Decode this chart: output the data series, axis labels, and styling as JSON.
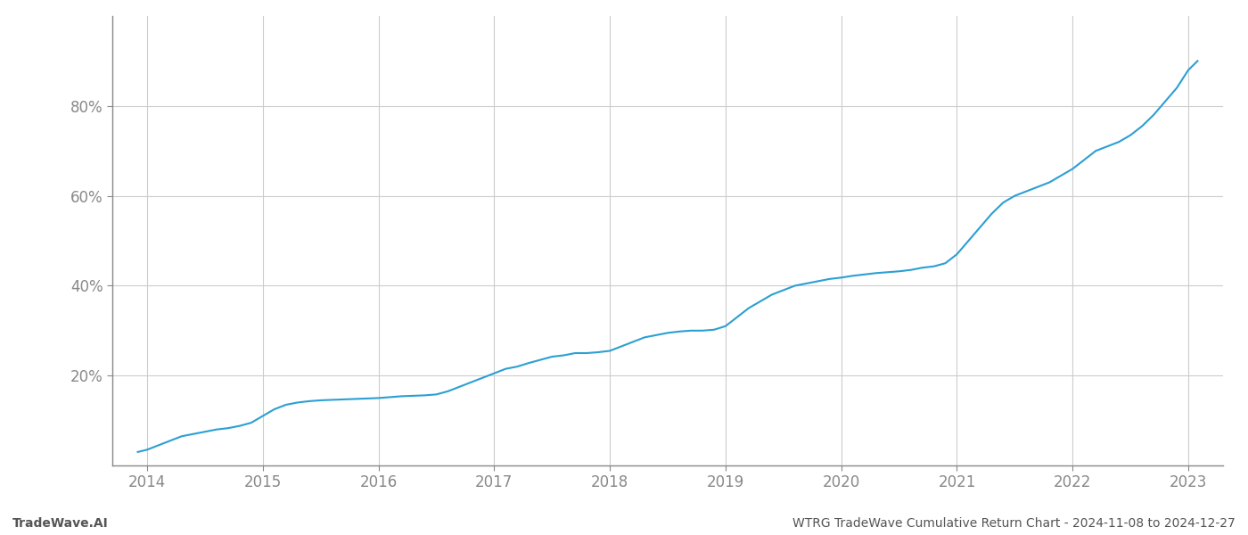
{
  "title": "WTRG TradeWave Cumulative Return Chart - 2024-11-08 to 2024-12-27",
  "watermark": "TradeWave.AI",
  "line_color": "#2b9fd4",
  "background_color": "#ffffff",
  "grid_color": "#cccccc",
  "x_years": [
    2014,
    2015,
    2016,
    2017,
    2018,
    2019,
    2020,
    2021,
    2022,
    2023
  ],
  "cumulative_returns_x": [
    2013.92,
    2014.0,
    2014.1,
    2014.2,
    2014.3,
    2014.4,
    2014.5,
    2014.6,
    2014.7,
    2014.8,
    2014.9,
    2015.0,
    2015.1,
    2015.2,
    2015.3,
    2015.4,
    2015.5,
    2015.6,
    2015.7,
    2015.8,
    2015.9,
    2016.0,
    2016.1,
    2016.2,
    2016.3,
    2016.4,
    2016.5,
    2016.6,
    2016.7,
    2016.8,
    2016.9,
    2017.0,
    2017.1,
    2017.2,
    2017.3,
    2017.4,
    2017.5,
    2017.6,
    2017.7,
    2017.8,
    2017.9,
    2018.0,
    2018.1,
    2018.2,
    2018.3,
    2018.4,
    2018.5,
    2018.6,
    2018.7,
    2018.8,
    2018.9,
    2019.0,
    2019.1,
    2019.2,
    2019.3,
    2019.4,
    2019.5,
    2019.6,
    2019.7,
    2019.8,
    2019.9,
    2020.0,
    2020.1,
    2020.2,
    2020.3,
    2020.4,
    2020.5,
    2020.6,
    2020.7,
    2020.8,
    2020.9,
    2021.0,
    2021.1,
    2021.2,
    2021.3,
    2021.4,
    2021.5,
    2021.6,
    2021.7,
    2021.8,
    2021.9,
    2022.0,
    2022.1,
    2022.2,
    2022.3,
    2022.4,
    2022.5,
    2022.6,
    2022.7,
    2022.8,
    2022.9,
    2023.0,
    2023.08
  ],
  "cumulative_returns_y": [
    3.0,
    3.5,
    4.5,
    5.5,
    6.5,
    7.0,
    7.5,
    8.0,
    8.3,
    8.8,
    9.5,
    11.0,
    12.5,
    13.5,
    14.0,
    14.3,
    14.5,
    14.6,
    14.7,
    14.8,
    14.9,
    15.0,
    15.2,
    15.4,
    15.5,
    15.6,
    15.8,
    16.5,
    17.5,
    18.5,
    19.5,
    20.5,
    21.5,
    22.0,
    22.8,
    23.5,
    24.2,
    24.5,
    25.0,
    25.0,
    25.2,
    25.5,
    26.5,
    27.5,
    28.5,
    29.0,
    29.5,
    29.8,
    30.0,
    30.0,
    30.2,
    31.0,
    33.0,
    35.0,
    36.5,
    38.0,
    39.0,
    40.0,
    40.5,
    41.0,
    41.5,
    41.8,
    42.2,
    42.5,
    42.8,
    43.0,
    43.2,
    43.5,
    44.0,
    44.3,
    45.0,
    47.0,
    50.0,
    53.0,
    56.0,
    58.5,
    60.0,
    61.0,
    62.0,
    63.0,
    64.5,
    66.0,
    68.0,
    70.0,
    71.0,
    72.0,
    73.5,
    75.5,
    78.0,
    81.0,
    84.0,
    88.0,
    90.0
  ],
  "ylim": [
    0,
    100
  ],
  "yticks": [
    20,
    40,
    60,
    80
  ],
  "ytick_labels": [
    "20%",
    "40%",
    "60%",
    "80%"
  ],
  "xlim": [
    2013.7,
    2023.3
  ],
  "line_width": 1.5,
  "footer_left_text": "TradeWave.AI",
  "footer_right_text": "WTRG TradeWave Cumulative Return Chart - 2024-11-08 to 2024-12-27",
  "footer_fontsize": 10,
  "tick_fontsize": 12,
  "spine_color": "#888888"
}
